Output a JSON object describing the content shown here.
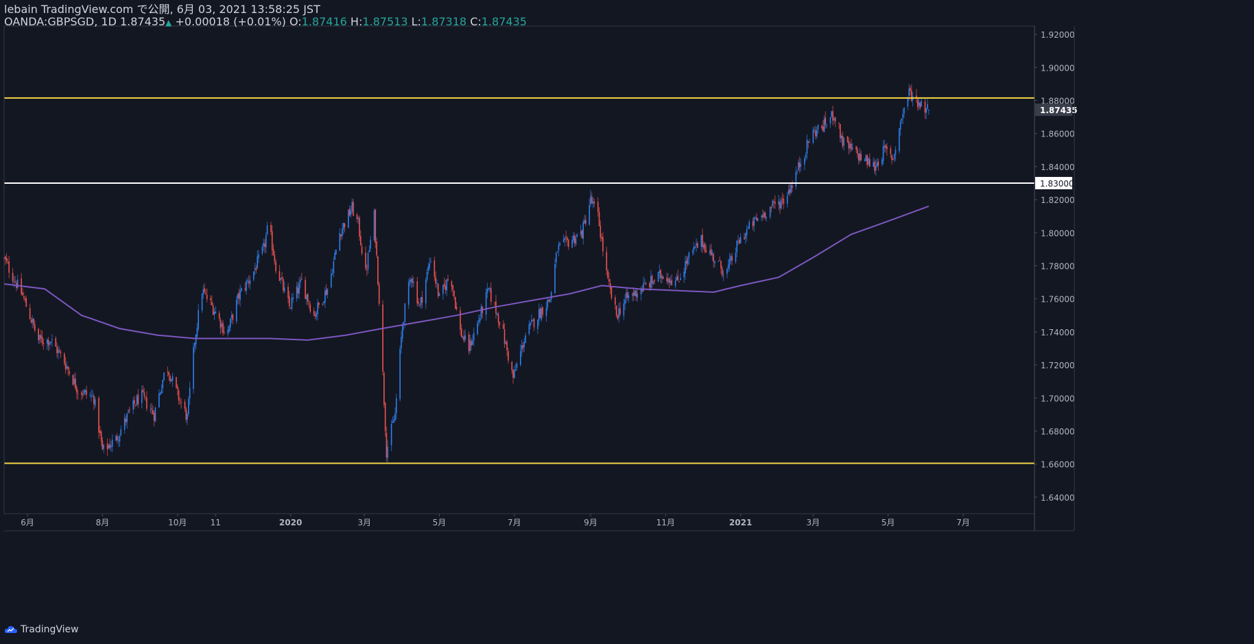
{
  "header": {
    "published_line": "lebain TradingView.com で公開, 6月 03, 2021 13:58:25 JST",
    "symbol": "OANDA:GBPSGD, 1D",
    "last": "1.87435",
    "change": "+0.00018 (+0.01%)",
    "o_label": "O:",
    "o_value": "1.87416",
    "h_label": "H:",
    "h_value": "1.87513",
    "l_label": "L:",
    "l_value": "1.87318",
    "c_label": "C:",
    "c_value": "1.87435"
  },
  "footer": {
    "brand": "TradingView"
  },
  "colors": {
    "background": "#131722",
    "up": "#2f80ed",
    "down": "#ef5350",
    "ma": "#7e57c2",
    "yellow_line": "#f6d645",
    "white_line": "#ffffff",
    "axis_text": "#b2b5be",
    "accent_teal": "#26a69a"
  },
  "chart_data": {
    "type": "candlestick",
    "symbol": "OANDA:GBPSGD",
    "interval": "1D",
    "ylim": [
      1.63,
      1.925
    ],
    "y_ticks": [
      "1.92000",
      "1.90000",
      "1.88000",
      "1.86000",
      "1.84000",
      "1.82000",
      "1.80000",
      "1.78000",
      "1.76000",
      "1.74000",
      "1.72000",
      "1.70000",
      "1.68000",
      "1.66000",
      "1.64000"
    ],
    "y_tick_values": [
      1.92,
      1.9,
      1.88,
      1.86,
      1.84,
      1.82,
      1.8,
      1.78,
      1.76,
      1.74,
      1.72,
      1.7,
      1.68,
      1.66,
      1.64
    ],
    "x_ticks": [
      {
        "label": "6月",
        "date": "2019-06-01"
      },
      {
        "label": "8月",
        "date": "2019-08-01"
      },
      {
        "label": "10月",
        "date": "2019-10-01"
      },
      {
        "label": "11",
        "date": "2019-11-01"
      },
      {
        "label": "2020",
        "date": "2020-01-01"
      },
      {
        "label": "3月",
        "date": "2020-03-01"
      },
      {
        "label": "5月",
        "date": "2020-05-01"
      },
      {
        "label": "7月",
        "date": "2020-07-01"
      },
      {
        "label": "9月",
        "date": "2020-09-01"
      },
      {
        "label": "11月",
        "date": "2020-11-01"
      },
      {
        "label": "2021",
        "date": "2021-01-01"
      },
      {
        "label": "3月",
        "date": "2021-03-01"
      },
      {
        "label": "5月",
        "date": "2021-05-01"
      },
      {
        "label": "7月",
        "date": "2021-07-01"
      }
    ],
    "x_range": [
      "2019-05-13",
      "2021-08-28"
    ],
    "last_date": "2021-06-03",
    "price_path": [
      [
        "2019-05-13",
        1.784
      ],
      [
        "2019-05-28",
        1.762
      ],
      [
        "2019-06-10",
        1.735
      ],
      [
        "2019-06-20",
        1.735
      ],
      [
        "2019-07-01",
        1.722
      ],
      [
        "2019-07-12",
        1.705
      ],
      [
        "2019-07-25",
        1.7
      ],
      [
        "2019-08-01",
        1.668
      ],
      [
        "2019-08-12",
        1.675
      ],
      [
        "2019-08-22",
        1.69
      ],
      [
        "2019-09-01",
        1.702
      ],
      [
        "2019-09-12",
        1.69
      ],
      [
        "2019-09-22",
        1.72
      ],
      [
        "2019-10-01",
        1.702
      ],
      [
        "2019-10-09",
        1.688
      ],
      [
        "2019-10-15",
        1.735
      ],
      [
        "2019-10-21",
        1.765
      ],
      [
        "2019-11-01",
        1.752
      ],
      [
        "2019-11-10",
        1.738
      ],
      [
        "2019-11-20",
        1.762
      ],
      [
        "2019-12-01",
        1.775
      ],
      [
        "2019-12-10",
        1.79
      ],
      [
        "2019-12-14",
        1.805
      ],
      [
        "2019-12-20",
        1.78
      ],
      [
        "2019-12-31",
        1.755
      ],
      [
        "2020-01-10",
        1.77
      ],
      [
        "2020-01-20",
        1.75
      ],
      [
        "2020-02-01",
        1.768
      ],
      [
        "2020-02-10",
        1.8
      ],
      [
        "2020-02-20",
        1.815
      ],
      [
        "2020-02-25",
        1.805
      ],
      [
        "2020-03-02",
        1.775
      ],
      [
        "2020-03-09",
        1.81
      ],
      [
        "2020-03-13",
        1.76
      ],
      [
        "2020-03-19",
        1.668
      ],
      [
        "2020-03-26",
        1.69
      ],
      [
        "2020-04-01",
        1.745
      ],
      [
        "2020-04-08",
        1.775
      ],
      [
        "2020-04-15",
        1.755
      ],
      [
        "2020-04-24",
        1.785
      ],
      [
        "2020-05-01",
        1.76
      ],
      [
        "2020-05-10",
        1.775
      ],
      [
        "2020-05-18",
        1.74
      ],
      [
        "2020-05-25",
        1.73
      ],
      [
        "2020-06-01",
        1.745
      ],
      [
        "2020-06-10",
        1.765
      ],
      [
        "2020-06-20",
        1.745
      ],
      [
        "2020-06-30",
        1.712
      ],
      [
        "2020-07-10",
        1.738
      ],
      [
        "2020-07-20",
        1.75
      ],
      [
        "2020-07-30",
        1.76
      ],
      [
        "2020-08-05",
        1.79
      ],
      [
        "2020-08-15",
        1.795
      ],
      [
        "2020-08-25",
        1.8
      ],
      [
        "2020-09-01",
        1.82
      ],
      [
        "2020-09-07",
        1.81
      ],
      [
        "2020-09-15",
        1.77
      ],
      [
        "2020-09-22",
        1.75
      ],
      [
        "2020-09-30",
        1.76
      ],
      [
        "2020-10-10",
        1.765
      ],
      [
        "2020-10-20",
        1.77
      ],
      [
        "2020-10-30",
        1.775
      ],
      [
        "2020-11-10",
        1.77
      ],
      [
        "2020-11-20",
        1.785
      ],
      [
        "2020-11-30",
        1.795
      ],
      [
        "2020-12-10",
        1.785
      ],
      [
        "2020-12-20",
        1.775
      ],
      [
        "2020-12-31",
        1.795
      ],
      [
        "2021-01-10",
        1.805
      ],
      [
        "2021-01-25",
        1.815
      ],
      [
        "2021-02-05",
        1.82
      ],
      [
        "2021-02-12",
        1.83
      ],
      [
        "2021-02-20",
        1.845
      ],
      [
        "2021-02-28",
        1.86
      ],
      [
        "2021-03-10",
        1.865
      ],
      [
        "2021-03-18",
        1.872
      ],
      [
        "2021-03-25",
        1.855
      ],
      [
        "2021-04-01",
        1.85
      ],
      [
        "2021-04-10",
        1.845
      ],
      [
        "2021-04-20",
        1.84
      ],
      [
        "2021-04-28",
        1.85
      ],
      [
        "2021-05-05",
        1.845
      ],
      [
        "2021-05-12",
        1.87
      ],
      [
        "2021-05-18",
        1.885
      ],
      [
        "2021-05-24",
        1.88
      ],
      [
        "2021-06-03",
        1.87435
      ]
    ],
    "moving_average": [
      [
        "2019-05-13",
        1.769
      ],
      [
        "2019-06-15",
        1.766
      ],
      [
        "2019-07-15",
        1.75
      ],
      [
        "2019-08-15",
        1.742
      ],
      [
        "2019-09-15",
        1.738
      ],
      [
        "2019-10-15",
        1.736
      ],
      [
        "2019-11-15",
        1.736
      ],
      [
        "2019-12-15",
        1.736
      ],
      [
        "2020-01-15",
        1.735
      ],
      [
        "2020-02-15",
        1.738
      ],
      [
        "2020-03-15",
        1.742
      ],
      [
        "2020-04-15",
        1.746
      ],
      [
        "2020-05-15",
        1.75
      ],
      [
        "2020-06-15",
        1.755
      ],
      [
        "2020-07-15",
        1.759
      ],
      [
        "2020-08-15",
        1.763
      ],
      [
        "2020-09-10",
        1.768
      ],
      [
        "2020-10-10",
        1.766
      ],
      [
        "2020-11-10",
        1.765
      ],
      [
        "2020-12-10",
        1.764
      ],
      [
        "2021-01-01",
        1.768
      ],
      [
        "2021-02-01",
        1.773
      ],
      [
        "2021-03-01",
        1.785
      ],
      [
        "2021-04-01",
        1.799
      ],
      [
        "2021-05-01",
        1.807
      ],
      [
        "2021-06-03",
        1.816
      ]
    ],
    "horizontal_lines": [
      {
        "value": 1.8815,
        "color": "yellow",
        "label": ""
      },
      {
        "value": 1.83,
        "color": "white",
        "label": "1.83000"
      },
      {
        "value": 1.6605,
        "color": "yellow",
        "label": ""
      }
    ],
    "last_price_label": "1.87435",
    "grid": false,
    "legend": "none"
  }
}
